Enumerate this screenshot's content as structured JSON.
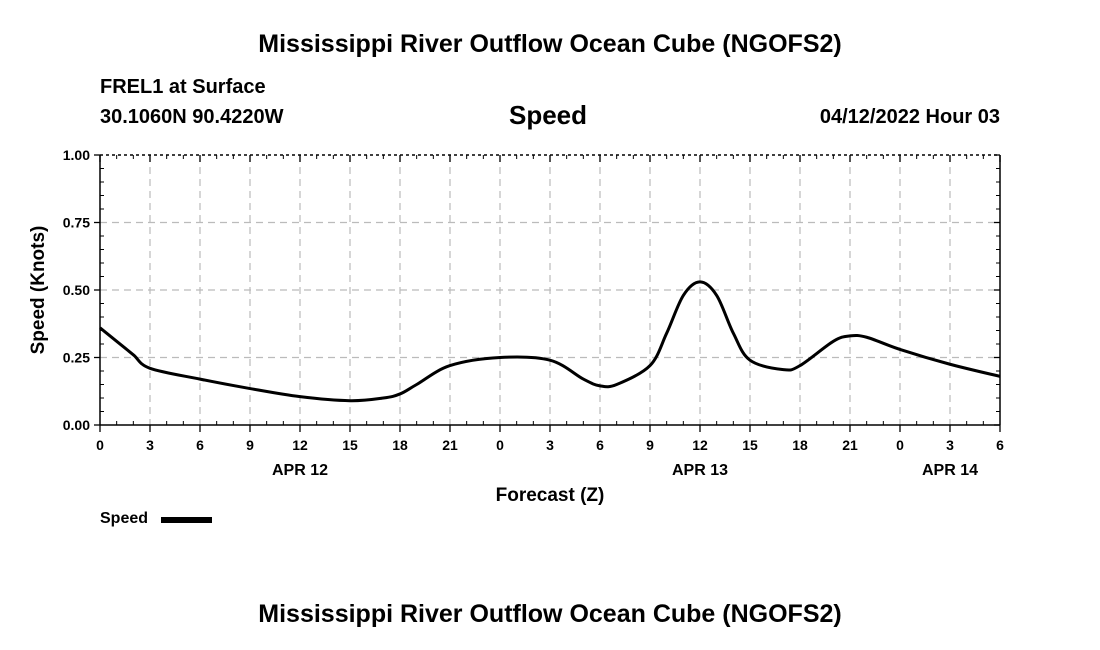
{
  "page": {
    "title_top": "Mississippi River Outflow Ocean Cube (NGOFS2)",
    "title_bottom": "Mississippi River Outflow Ocean Cube (NGOFS2)",
    "station": "FREL1 at Surface",
    "coords": "30.1060N  90.4220W",
    "panel_title": "Speed",
    "datetime": "04/12/2022 Hour 03",
    "legend_label": "Speed"
  },
  "colors": {
    "series": "#000000",
    "grid": "#bbbbbb",
    "axis": "#000000"
  },
  "chart_data": {
    "type": "line",
    "title": "Speed",
    "xlabel": "Forecast (Z)",
    "ylabel": "Speed (Knots)",
    "ylim": [
      0,
      1
    ],
    "xlim": [
      "2022-04-12T00:00Z",
      "2022-04-14T06:00Z"
    ],
    "grid": true,
    "legend_position": "bottom-left",
    "y_ticks": [
      "0.00",
      "0.25",
      "0.50",
      "0.75",
      "1.00"
    ],
    "x_ticks": [
      "0",
      "3",
      "6",
      "9",
      "12",
      "15",
      "18",
      "21",
      "0",
      "3",
      "6",
      "9",
      "12",
      "15",
      "18",
      "21",
      "0",
      "3",
      "6"
    ],
    "day_labels": [
      {
        "label": "APR 12",
        "x": "2022-04-12T12:00Z"
      },
      {
        "label": "APR 13",
        "x": "2022-04-13T12:00Z"
      },
      {
        "label": "APR 14",
        "x": "2022-04-14T03:00Z"
      }
    ],
    "series": [
      {
        "name": "Speed",
        "x": [
          "2022-04-12T00:00Z",
          "2022-04-12T01:00Z",
          "2022-04-12T02:00Z",
          "2022-04-12T03:00Z",
          "2022-04-12T06:00Z",
          "2022-04-12T09:00Z",
          "2022-04-12T12:00Z",
          "2022-04-12T15:00Z",
          "2022-04-12T17:00Z",
          "2022-04-12T18:00Z",
          "2022-04-12T19:00Z",
          "2022-04-12T21:00Z",
          "2022-04-13T00:00Z",
          "2022-04-13T03:00Z",
          "2022-04-13T05:00Z",
          "2022-04-13T06:00Z",
          "2022-04-13T07:00Z",
          "2022-04-13T09:00Z",
          "2022-04-13T10:00Z",
          "2022-04-13T11:00Z",
          "2022-04-13T12:00Z",
          "2022-04-13T13:00Z",
          "2022-04-13T14:00Z",
          "2022-04-13T15:00Z",
          "2022-04-13T17:00Z",
          "2022-04-13T18:00Z",
          "2022-04-13T20:00Z",
          "2022-04-13T21:00Z",
          "2022-04-13T22:00Z",
          "2022-04-14T00:00Z",
          "2022-04-14T03:00Z",
          "2022-04-14T06:00Z"
        ],
        "y": [
          0.36,
          0.31,
          0.26,
          0.21,
          0.17,
          0.135,
          0.105,
          0.09,
          0.1,
          0.115,
          0.15,
          0.22,
          0.25,
          0.24,
          0.17,
          0.145,
          0.15,
          0.22,
          0.34,
          0.48,
          0.53,
          0.48,
          0.34,
          0.24,
          0.205,
          0.22,
          0.31,
          0.33,
          0.325,
          0.28,
          0.225,
          0.18
        ]
      }
    ]
  }
}
